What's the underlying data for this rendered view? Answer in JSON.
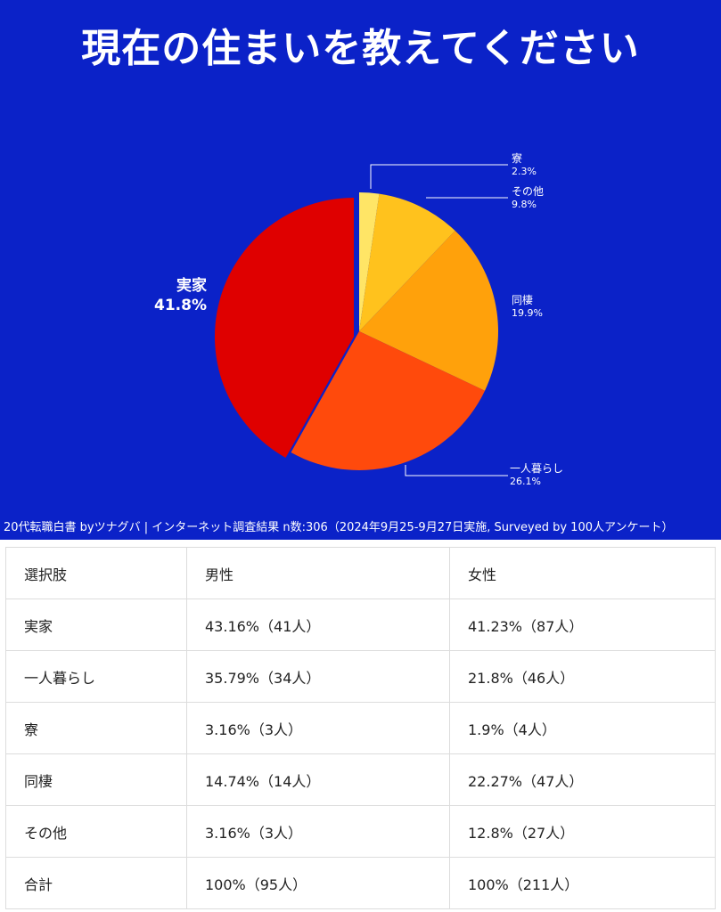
{
  "title": "現在の住まいを教えてください",
  "footer": "20代転職白書 byツナグバ | インターネット調査結果 n数:306（2024年9月25-9月27日実施, Surveyed by 100人アンケート）",
  "colors": {
    "background": "#0b22c8",
    "寮": "#ffe566",
    "その他": "#ffc21d",
    "同棲": "#ffa10b",
    "一人暮らし": "#ff4a0c",
    "実家": "#df0000"
  },
  "chart_data": {
    "type": "pie",
    "slices": [
      {
        "label": "寮",
        "value": 2.3,
        "display": "2.3%"
      },
      {
        "label": "その他",
        "value": 9.8,
        "display": "9.8%"
      },
      {
        "label": "同棲",
        "value": 19.9,
        "display": "19.9%"
      },
      {
        "label": "一人暮らし",
        "value": 26.1,
        "display": "26.1%"
      },
      {
        "label": "実家",
        "value": 41.8,
        "display": "41.8%"
      }
    ],
    "start": "12 o'clock",
    "direction": "clockwise",
    "exploded": "実家"
  },
  "table": {
    "headers": [
      "選択肢",
      "男性",
      "女性"
    ],
    "rows": [
      [
        "実家",
        "43.16%（41人）",
        "41.23%（87人）"
      ],
      [
        "一人暮らし",
        "35.79%（34人）",
        "21.8%（46人）"
      ],
      [
        "寮",
        "3.16%（3人）",
        "1.9%（4人）"
      ],
      [
        "同棲",
        "14.74%（14人）",
        "22.27%（47人）"
      ],
      [
        "その他",
        "3.16%（3人）",
        "12.8%（27人）"
      ],
      [
        "合計",
        "100%（95人）",
        "100%（211人）"
      ]
    ]
  }
}
